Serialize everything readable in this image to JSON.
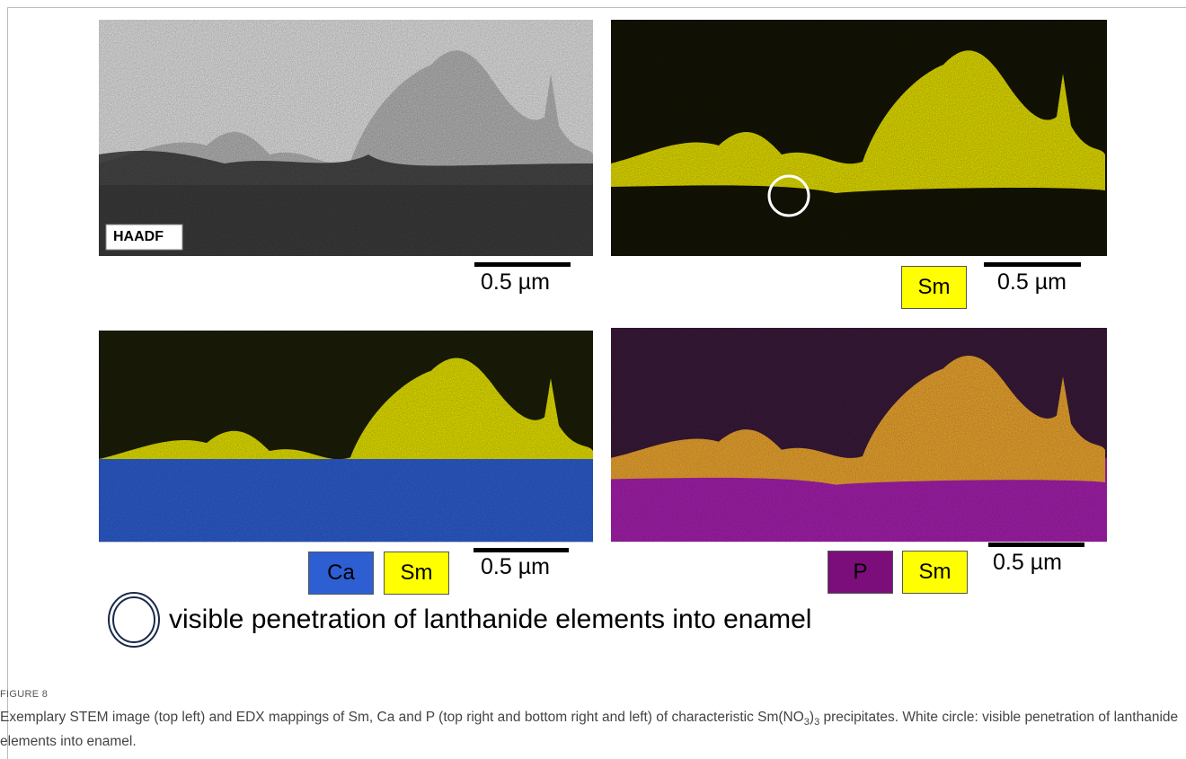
{
  "panels": [
    {
      "label": "HAADF",
      "scale_bar": "0.5 µm"
    },
    {
      "keys": [
        "Sm"
      ],
      "scale_bar": "0.5 µm"
    },
    {
      "keys": [
        "Ca",
        "Sm"
      ],
      "scale_bar": "0.5 µm"
    },
    {
      "keys": [
        "P",
        "Sm"
      ],
      "scale_bar": "0.5 µm"
    }
  ],
  "legend": {
    "text": "visible penetration of lanthanide elements into enamel"
  },
  "figure_label": "FIGURE 8",
  "caption": {
    "text_before": "Exemplary STEM image (top left) and EDX mappings of Sm, Ca and P (top right and bottom right and left) of characteristic Sm(NO",
    "sub_1": "3",
    "text_middle": ")",
    "sub_2": "3",
    "text_after": " precipitates. White circle: visible penetration of lanthanide elements into enamel."
  }
}
